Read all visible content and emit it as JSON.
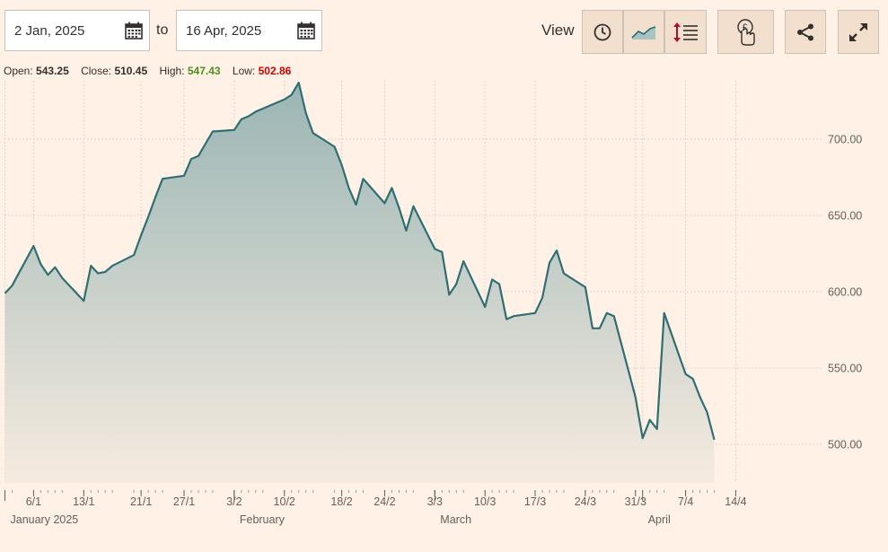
{
  "controls": {
    "from_date": "2 Jan, 2025",
    "to_label": "to",
    "to_date": "16 Apr, 2025",
    "view_label": "View"
  },
  "stats": {
    "open_label": "Open:",
    "open": "543.25",
    "close_label": "Close:",
    "close": "510.45",
    "high_label": "High:",
    "high": "547.43",
    "low_label": "Low:",
    "low": "502.86"
  },
  "colors": {
    "background": "#fff1e5",
    "line": "#2f6f73",
    "high": "#4d8f1e",
    "low": "#cc0000",
    "grid": "#d8ccbf",
    "area_top": "#9ab5b4",
    "area_bottom": "#f6ebe0"
  },
  "icons": {
    "from_calendar": "calendar-icon",
    "to_calendar": "calendar-icon",
    "clock": "clock-icon",
    "line_chart": "line-chart-icon",
    "y_axis": "y-axis-scale-icon",
    "currency": "currency-pound-touch-icon",
    "share": "share-icon",
    "expand": "expand-icon"
  },
  "chart_data": {
    "type": "area",
    "title": "",
    "xlabel": "",
    "ylabel": "",
    "ylim": [
      475,
      738
    ],
    "y_ticks": [
      500,
      550,
      600,
      650,
      700
    ],
    "y_tick_labels": [
      "500.00",
      "550.00",
      "600.00",
      "650.00",
      "700.00"
    ],
    "grid": true,
    "x_tick_labels": [
      {
        "date": "2025-01-06",
        "label": "6/1"
      },
      {
        "date": "2025-01-13",
        "label": "13/1"
      },
      {
        "date": "2025-01-21",
        "label": "21/1"
      },
      {
        "date": "2025-01-27",
        "label": "27/1"
      },
      {
        "date": "2025-02-03",
        "label": "3/2"
      },
      {
        "date": "2025-02-10",
        "label": "10/2"
      },
      {
        "date": "2025-02-18",
        "label": "18/2"
      },
      {
        "date": "2025-02-24",
        "label": "24/2"
      },
      {
        "date": "2025-03-03",
        "label": "3/3"
      },
      {
        "date": "2025-03-10",
        "label": "10/3"
      },
      {
        "date": "2025-03-17",
        "label": "17/3"
      },
      {
        "date": "2025-03-24",
        "label": "24/3"
      },
      {
        "date": "2025-03-31",
        "label": "31/3"
      },
      {
        "date": "2025-04-07",
        "label": "7/4"
      },
      {
        "date": "2025-04-14",
        "label": "14/4"
      }
    ],
    "month_labels": [
      {
        "date": "2025-01-02",
        "label": "January 2025"
      },
      {
        "date": "2025-02-03",
        "label": "February"
      },
      {
        "date": "2025-03-03",
        "label": "March"
      },
      {
        "date": "2025-04-01",
        "label": "April"
      }
    ],
    "series": [
      {
        "points": [
          [
            "2025-01-02",
            599
          ],
          [
            "2025-01-03",
            604
          ],
          [
            "2025-01-06",
            630
          ],
          [
            "2025-01-07",
            618
          ],
          [
            "2025-01-08",
            611
          ],
          [
            "2025-01-09",
            616
          ],
          [
            "2025-01-10",
            609
          ],
          [
            "2025-01-13",
            594
          ],
          [
            "2025-01-14",
            617
          ],
          [
            "2025-01-15",
            612
          ],
          [
            "2025-01-16",
            613
          ],
          [
            "2025-01-17",
            617
          ],
          [
            "2025-01-20",
            624
          ],
          [
            "2025-01-21",
            637
          ],
          [
            "2025-01-22",
            649
          ],
          [
            "2025-01-23",
            662
          ],
          [
            "2025-01-24",
            674
          ],
          [
            "2025-01-27",
            676
          ],
          [
            "2025-01-28",
            687
          ],
          [
            "2025-01-29",
            689
          ],
          [
            "2025-01-30",
            697
          ],
          [
            "2025-01-31",
            705
          ],
          [
            "2025-02-03",
            706
          ],
          [
            "2025-02-04",
            713
          ],
          [
            "2025-02-05",
            715
          ],
          [
            "2025-02-06",
            718
          ],
          [
            "2025-02-07",
            720
          ],
          [
            "2025-02-10",
            726
          ],
          [
            "2025-02-11",
            729
          ],
          [
            "2025-02-12",
            737
          ],
          [
            "2025-02-13",
            717
          ],
          [
            "2025-02-14",
            704
          ],
          [
            "2025-02-17",
            695
          ],
          [
            "2025-02-18",
            683
          ],
          [
            "2025-02-19",
            668
          ],
          [
            "2025-02-20",
            657
          ],
          [
            "2025-02-21",
            674
          ],
          [
            "2025-02-24",
            658
          ],
          [
            "2025-02-25",
            668
          ],
          [
            "2025-02-26",
            655
          ],
          [
            "2025-02-27",
            640
          ],
          [
            "2025-02-28",
            656
          ],
          [
            "2025-03-03",
            628
          ],
          [
            "2025-03-04",
            626
          ],
          [
            "2025-03-05",
            598
          ],
          [
            "2025-03-06",
            605
          ],
          [
            "2025-03-07",
            620
          ],
          [
            "2025-03-10",
            590
          ],
          [
            "2025-03-11",
            608
          ],
          [
            "2025-03-12",
            605
          ],
          [
            "2025-03-13",
            582
          ],
          [
            "2025-03-14",
            584
          ],
          [
            "2025-03-17",
            586
          ],
          [
            "2025-03-18",
            596
          ],
          [
            "2025-03-19",
            619
          ],
          [
            "2025-03-20",
            627
          ],
          [
            "2025-03-21",
            612
          ],
          [
            "2025-03-24",
            603
          ],
          [
            "2025-03-25",
            576
          ],
          [
            "2025-03-26",
            576
          ],
          [
            "2025-03-27",
            586
          ],
          [
            "2025-03-28",
            584
          ],
          [
            "2025-03-31",
            531
          ],
          [
            "2025-04-01",
            504
          ],
          [
            "2025-04-02",
            516
          ],
          [
            "2025-04-03",
            510
          ],
          [
            "2025-04-04",
            586
          ],
          [
            "2025-04-07",
            546
          ],
          [
            "2025-04-08",
            543
          ],
          [
            "2025-04-09",
            531
          ],
          [
            "2025-04-10",
            521
          ],
          [
            "2025-04-11",
            503
          ]
        ]
      }
    ]
  }
}
